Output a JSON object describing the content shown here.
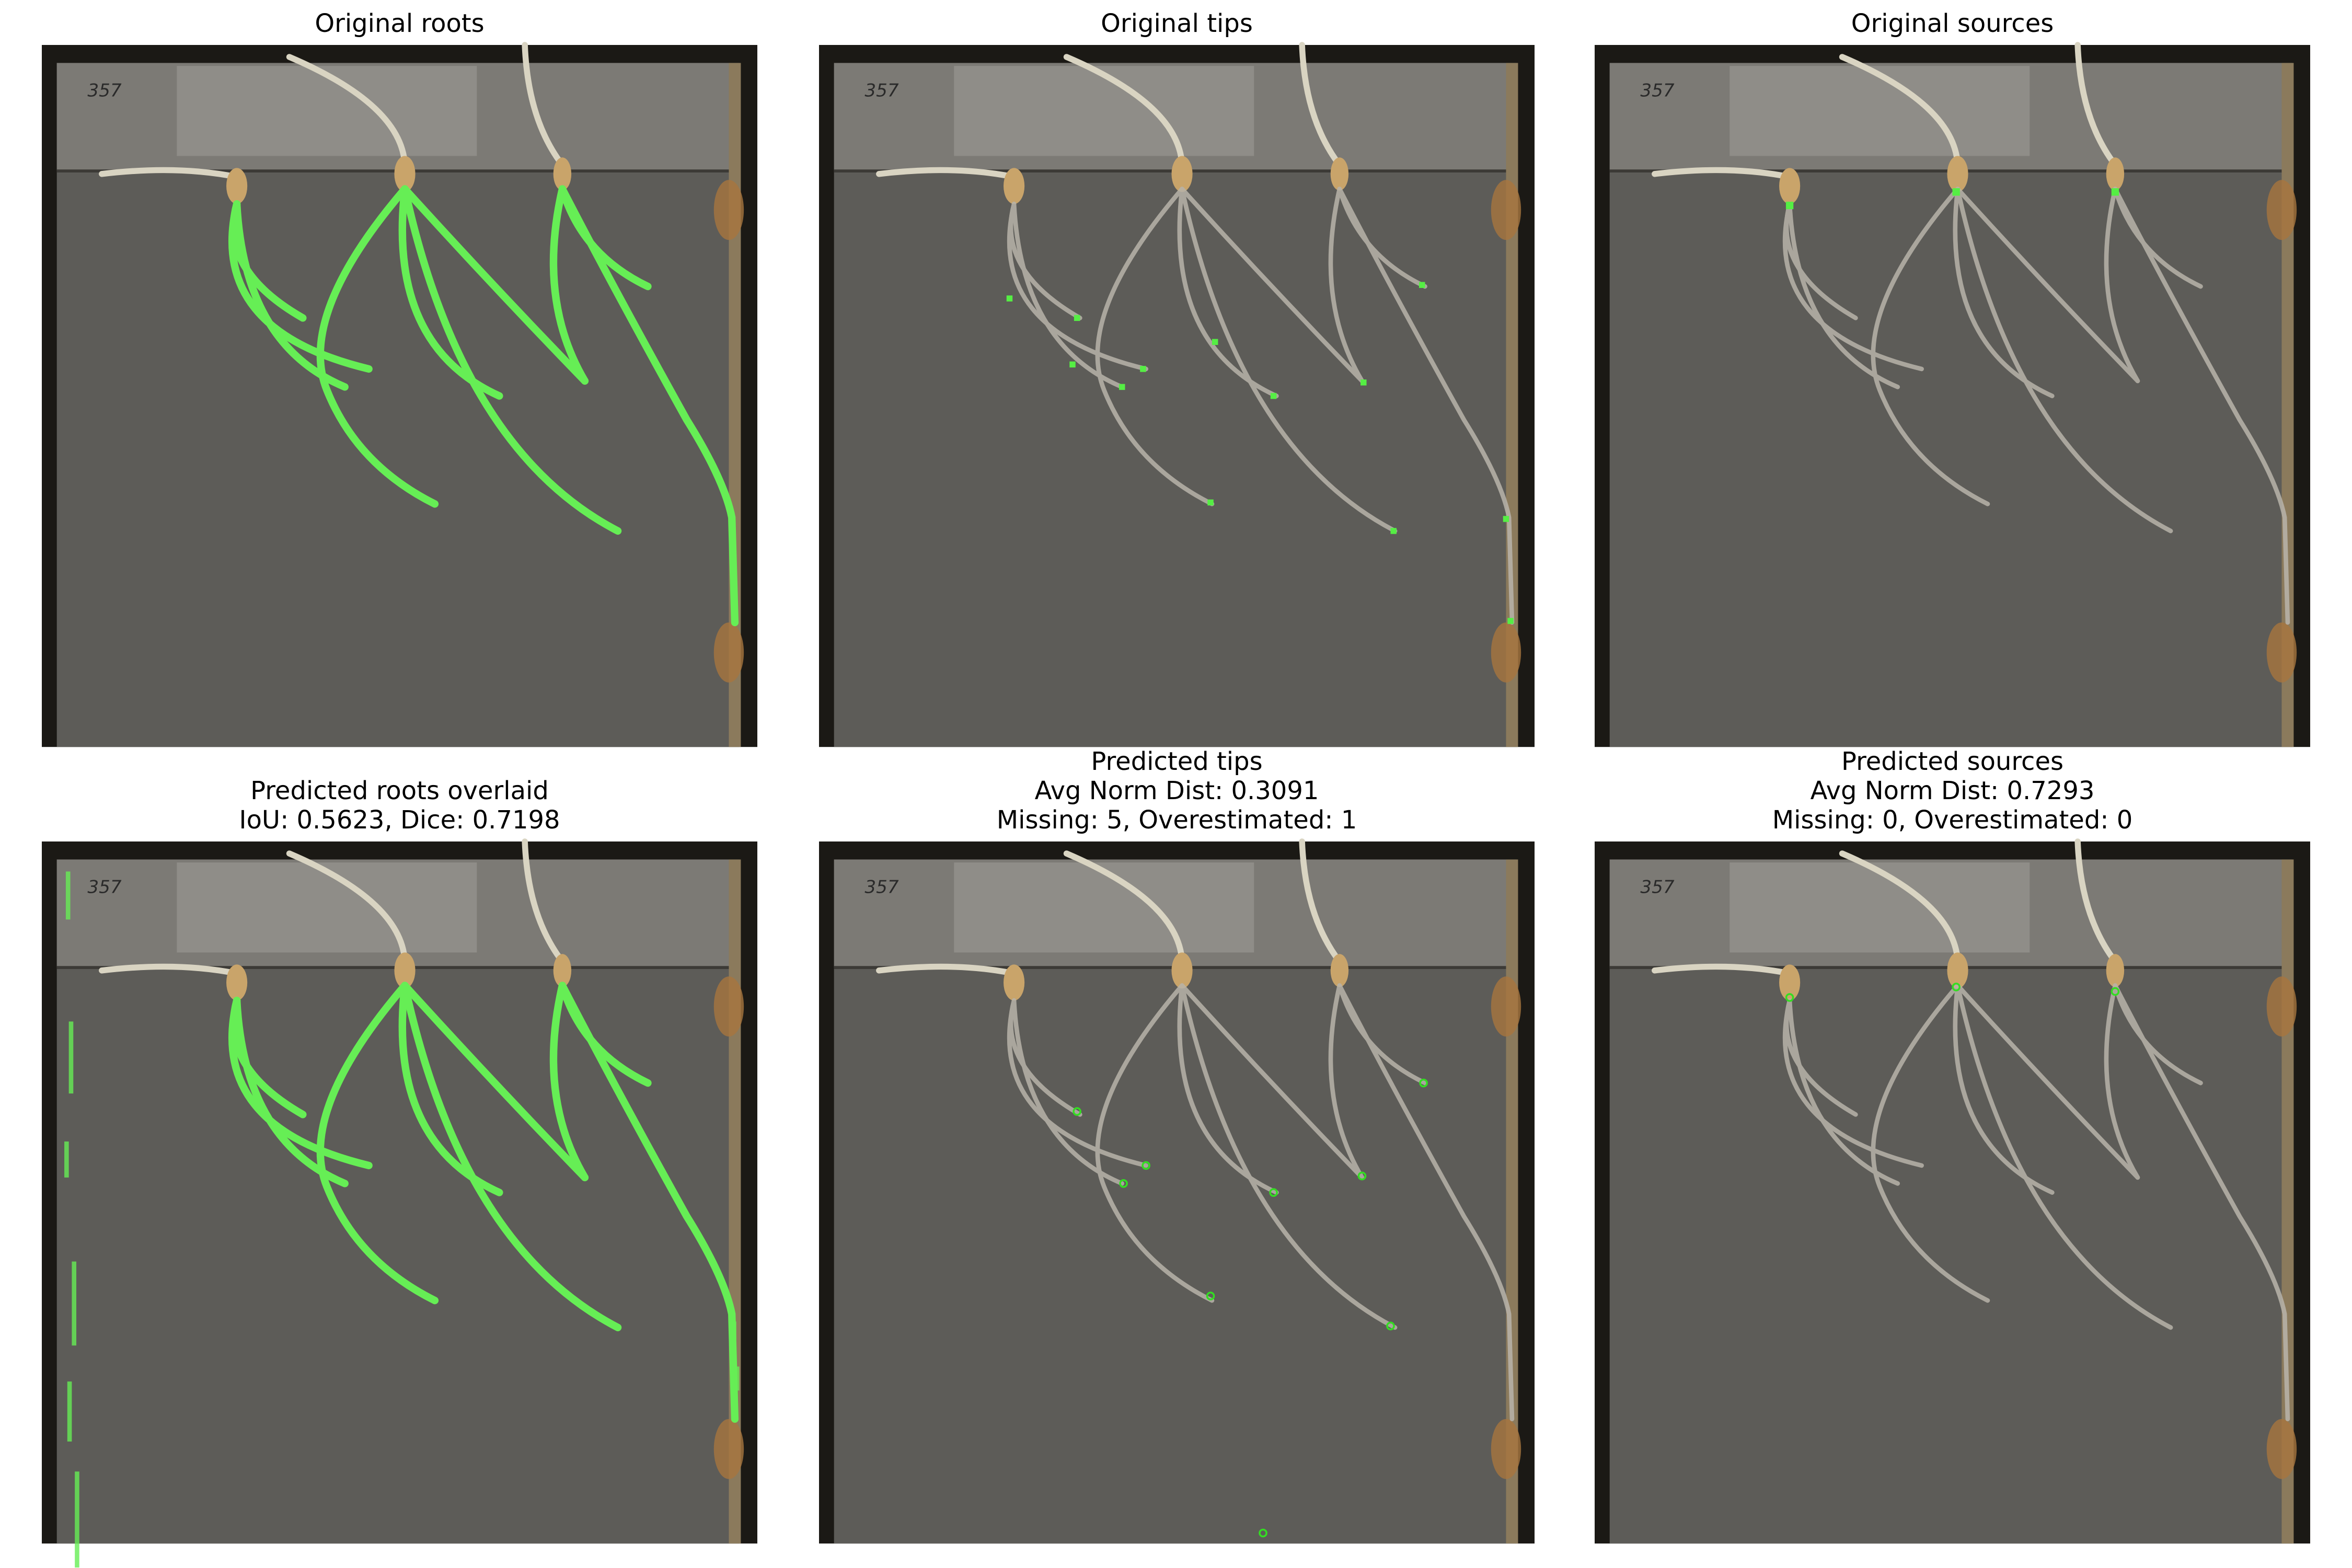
{
  "panels": [
    {
      "title": [
        "Original roots"
      ]
    },
    {
      "title": [
        "Original tips"
      ]
    },
    {
      "title": [
        "Original sources"
      ]
    },
    {
      "title": [
        "Predicted roots overlaid",
        "IoU: 0.5623, Dice: 0.7198"
      ]
    },
    {
      "title": [
        "Predicted tips",
        "Avg Norm Dist: 0.3091",
        "Missing: 5, Overestimated: 1"
      ]
    },
    {
      "title": [
        "Predicted sources",
        "Avg Norm Dist: 0.7293",
        "Missing: 0, Overestimated: 0"
      ]
    }
  ],
  "plate_label": "357"
}
